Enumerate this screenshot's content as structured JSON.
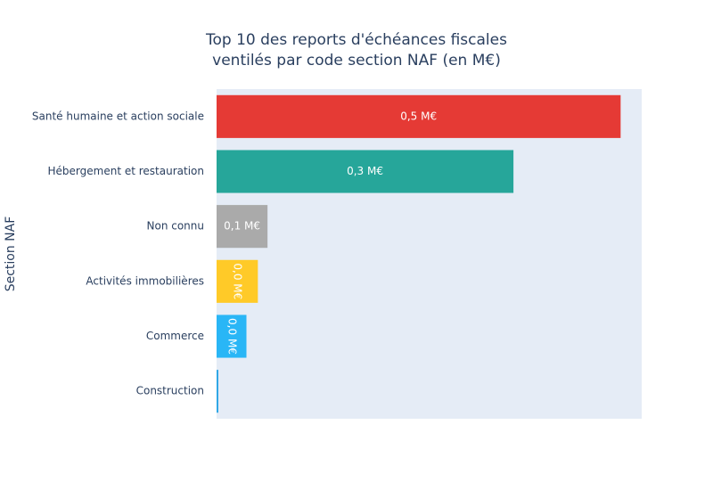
{
  "chart_data": {
    "type": "barh",
    "title": [
      "Top 10 des reports d'échéances fiscales",
      "ventilés par code section NAF (en M€)"
    ],
    "y_label": "Section NAF",
    "categories": [
      "Santé humaine et action sociale",
      "Hébergement et restauration",
      "Non connu",
      "Activités immobilières",
      "Commerce",
      "Construction"
    ],
    "values": [
      0.46,
      0.338,
      0.058,
      0.047,
      0.034,
      0.002
    ],
    "value_labels": [
      "0,5 M€",
      "0,3 M€",
      "0,1 M€",
      "0,0 M€",
      "0,0 M€",
      null
    ],
    "colors": [
      "#e53a35",
      "#26a69a",
      "#aaaaaa",
      "#ffca28",
      "#29b6f6",
      "#2ea7e6"
    ],
    "xlim": [
      0,
      0.484
    ]
  }
}
